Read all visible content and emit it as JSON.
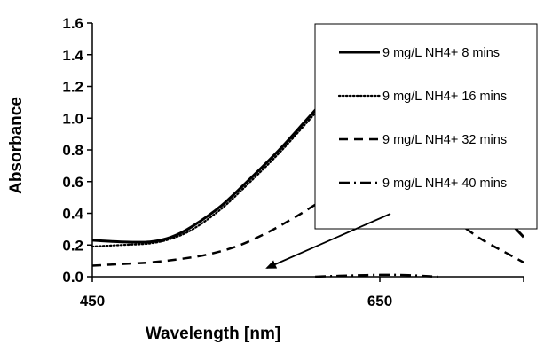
{
  "chart_data": {
    "type": "line",
    "xlabel": "Wavelength [nm]",
    "ylabel": "Absorbance",
    "xlim": [
      450,
      750
    ],
    "ylim": [
      0,
      1.6
    ],
    "x_ticks": [
      450,
      650
    ],
    "y_ticks": [
      0.0,
      0.2,
      0.4,
      0.6,
      0.8,
      1.0,
      1.2,
      1.4,
      1.6
    ],
    "y_tick_labels": [
      "0.0",
      "0.2",
      "0.4",
      "0.6",
      "0.8",
      "1.0",
      "1.2",
      "1.4",
      "1.6"
    ],
    "grid": false,
    "legend_position": "top-right",
    "series": [
      {
        "name": "9 mg/L NH4+ 8 mins",
        "style": "solid",
        "color": "#000000",
        "x": [
          450,
          470,
          490,
          505,
          520,
          540,
          560,
          580,
          600,
          620,
          640,
          655,
          670,
          690,
          710,
          730,
          750
        ],
        "y": [
          0.23,
          0.22,
          0.22,
          0.25,
          0.32,
          0.45,
          0.62,
          0.8,
          1.0,
          1.2,
          1.37,
          1.42,
          1.3,
          1.0,
          0.7,
          0.45,
          0.25
        ]
      },
      {
        "name": "9 mg/L NH4+ 16 mins",
        "style": "dotted",
        "color": "#000000",
        "x": [
          450,
          470,
          490,
          505,
          520,
          540,
          560,
          580,
          600,
          620,
          640,
          655,
          670,
          690,
          710,
          730,
          750
        ],
        "y": [
          0.19,
          0.2,
          0.21,
          0.24,
          0.3,
          0.43,
          0.6,
          0.78,
          0.98,
          1.18,
          1.32,
          1.36,
          1.25,
          0.97,
          0.68,
          0.44,
          0.25
        ]
      },
      {
        "name": "9 mg/L NH4+ 32 mins",
        "style": "dashed",
        "color": "#000000",
        "x": [
          450,
          470,
          490,
          510,
          530,
          550,
          570,
          590,
          610,
          630,
          645,
          655,
          665,
          680,
          700,
          720,
          740,
          750
        ],
        "y": [
          0.07,
          0.08,
          0.09,
          0.11,
          0.14,
          0.19,
          0.27,
          0.37,
          0.48,
          0.57,
          0.61,
          0.62,
          0.6,
          0.51,
          0.37,
          0.24,
          0.14,
          0.09
        ]
      },
      {
        "name": "9 mg/L NH4+ 40 mins",
        "style": "dashdot",
        "color": "#000000",
        "x": [
          605,
          620,
          640,
          655,
          670,
          690
        ],
        "y": [
          0.0,
          0.005,
          0.01,
          0.012,
          0.01,
          0.0
        ]
      }
    ]
  }
}
